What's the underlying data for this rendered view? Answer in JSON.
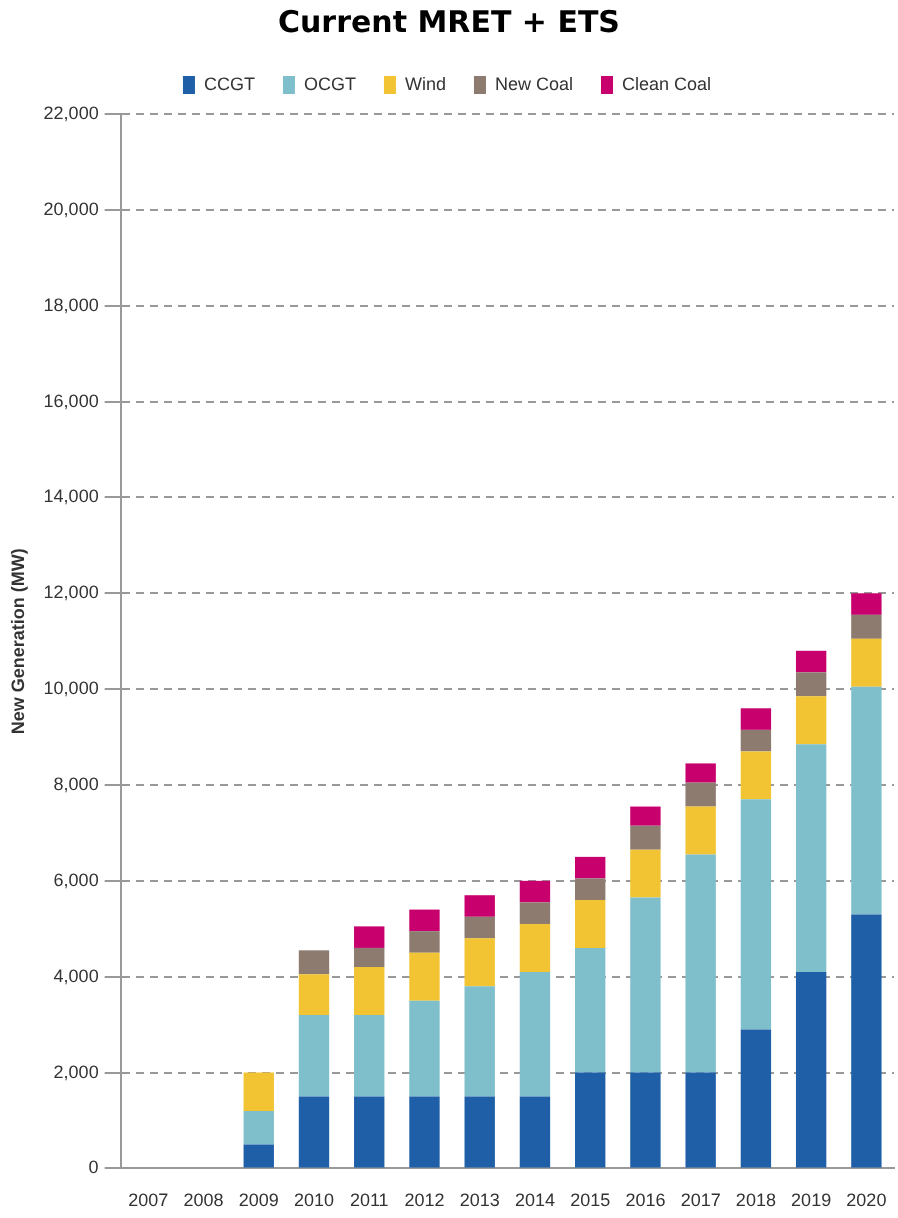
{
  "chart_data": {
    "type": "bar",
    "title": "Current MRET + ETS",
    "ylabel": "New Generation (MW)",
    "stacked": true,
    "legend": "top",
    "grid": "y",
    "line_style": "dashed",
    "categories": [
      "2007",
      "2008",
      "2009",
      "2010",
      "2011",
      "2012",
      "2013",
      "2014",
      "2015",
      "2016",
      "2017",
      "2018",
      "2019",
      "2020"
    ],
    "ylim": [
      0,
      22000
    ],
    "yticks": [
      {
        "value": 0,
        "label": "0"
      },
      {
        "value": 2000,
        "label": "2,000"
      },
      {
        "value": 4000,
        "label": "4,000"
      },
      {
        "value": 6000,
        "label": "6,000"
      },
      {
        "value": 8000,
        "label": "8,000"
      },
      {
        "value": 10000,
        "label": "10,000"
      },
      {
        "value": 12000,
        "label": "12,000"
      },
      {
        "value": 14000,
        "label": "14,000"
      },
      {
        "value": 16000,
        "label": "16,000"
      },
      {
        "value": 18000,
        "label": "18,000"
      },
      {
        "value": 20000,
        "label": "20,000"
      },
      {
        "value": 22000,
        "label": "22,000"
      }
    ],
    "series": [
      {
        "name": "CCGT",
        "color": "#1f5fa8",
        "values": [
          null,
          null,
          500,
          1500,
          1500,
          1500,
          1500,
          1500,
          2000,
          2000,
          2000,
          2900,
          4100,
          5300
        ]
      },
      {
        "name": "OCGT",
        "color": "#7fbfcc",
        "values": [
          null,
          null,
          700,
          1700,
          1700,
          2000,
          2300,
          2600,
          2600,
          3650,
          4550,
          4800,
          4750,
          4750
        ]
      },
      {
        "name": "Wind",
        "color": "#f2c433",
        "values": [
          null,
          null,
          800,
          850,
          1000,
          1000,
          1000,
          1000,
          1000,
          1000,
          1000,
          1000,
          1000,
          1000
        ]
      },
      {
        "name": "New Coal",
        "color": "#8c7b6e",
        "values": [
          null,
          null,
          null,
          500,
          400,
          450,
          450,
          450,
          450,
          500,
          500,
          450,
          500,
          500
        ]
      },
      {
        "name": "Clean Coal",
        "color": "#c8006e",
        "values": [
          null,
          null,
          null,
          null,
          450,
          450,
          450,
          450,
          450,
          400,
          400,
          450,
          450,
          450
        ]
      }
    ]
  }
}
